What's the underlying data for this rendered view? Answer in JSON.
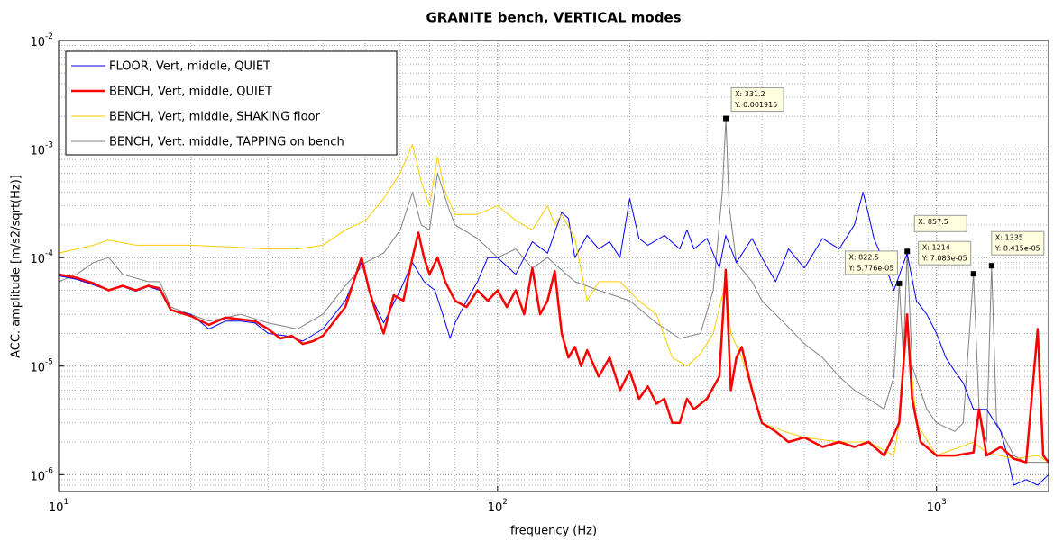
{
  "chart_data": {
    "type": "line",
    "title": "GRANITE bench, VERTICAL modes",
    "x_label": "frequency (Hz)",
    "y_label": "ACC. amplitude [m/s2/sqrt(Hz)]",
    "log_x": true,
    "log_y": true,
    "grid": true,
    "legend": "upper left",
    "xlim": [
      10,
      1800
    ],
    "ylim": [
      7e-07,
      0.01
    ],
    "xticks": [
      {
        "value": 10,
        "label": "10^1"
      },
      {
        "value": 100,
        "label": "10^2"
      },
      {
        "value": 1000,
        "label": "10^3"
      }
    ],
    "yticks": [
      {
        "value": 1e-06,
        "label": "10^-6"
      },
      {
        "value": 1e-05,
        "label": "10^-5"
      },
      {
        "value": 0.0001,
        "label": "10^-4"
      },
      {
        "value": 0.001,
        "label": "10^-3"
      },
      {
        "value": 0.01,
        "label": "10^-2"
      }
    ],
    "series": [
      {
        "name": "FLOOR, Vert, middle, QUIET",
        "color": "#0000ff",
        "width": 1,
        "x": [
          10,
          11,
          12,
          13,
          14,
          15,
          16,
          17,
          18,
          20,
          22,
          24,
          26,
          28,
          30,
          33,
          36,
          40,
          45,
          49,
          52,
          55,
          60,
          64,
          68,
          72,
          75,
          78,
          80,
          85,
          90,
          95,
          100,
          110,
          120,
          130,
          140,
          145,
          150,
          160,
          170,
          180,
          190,
          200,
          210,
          220,
          240,
          260,
          270,
          280,
          300,
          320,
          331,
          350,
          380,
          400,
          430,
          460,
          500,
          550,
          600,
          650,
          680,
          700,
          720,
          760,
          800,
          857,
          900,
          950,
          1000,
          1050,
          1100,
          1150,
          1214,
          1300,
          1400,
          1450,
          1500,
          1600,
          1700,
          1800
        ],
        "values": [
          6.8e-05,
          6.3e-05,
          5.6e-05,
          5e-05,
          5.4e-05,
          4.9e-05,
          5.4e-05,
          5e-05,
          3.3e-05,
          3e-05,
          2.2e-05,
          2.6e-05,
          2.6e-05,
          2.5e-05,
          2e-05,
          1.9e-05,
          1.7e-05,
          2.2e-05,
          4e-05,
          9e-05,
          4e-05,
          2.5e-05,
          5e-05,
          9e-05,
          6e-05,
          5e-05,
          3e-05,
          1.8e-05,
          2.5e-05,
          4e-05,
          6e-05,
          0.0001,
          0.0001,
          7e-05,
          0.00014,
          0.00011,
          0.00026,
          0.00023,
          0.0001,
          0.00016,
          0.00012,
          0.00014,
          0.0001,
          0.00035,
          0.00015,
          0.00013,
          0.00016,
          0.00012,
          0.00018,
          0.00012,
          0.00015,
          8e-05,
          0.00016,
          9e-05,
          0.00015,
          0.0001,
          6e-05,
          0.00012,
          8e-05,
          0.00015,
          0.00012,
          0.0002,
          0.0004,
          0.00025,
          0.00015,
          9e-05,
          5e-05,
          0.00011,
          4e-05,
          3e-05,
          2e-05,
          1.2e-05,
          9e-06,
          7e-06,
          4e-06,
          4e-06,
          2.5e-06,
          1.5e-06,
          8e-07,
          9e-07,
          8e-07,
          1e-06
        ]
      },
      {
        "name": "BENCH, Vert, middle, QUIET",
        "color": "#ff0000",
        "width": 2.5,
        "x": [
          10,
          11,
          12,
          13,
          14,
          15,
          16,
          17,
          18,
          20,
          22,
          24,
          26,
          28,
          30,
          32,
          34,
          36,
          38,
          40,
          45,
          49,
          51,
          53,
          55,
          58,
          61,
          64,
          66,
          68,
          70,
          73,
          76,
          80,
          85,
          90,
          95,
          100,
          105,
          110,
          115,
          120,
          125,
          130,
          135,
          140,
          145,
          150,
          155,
          160,
          170,
          180,
          190,
          200,
          210,
          220,
          230,
          240,
          250,
          260,
          270,
          280,
          300,
          320,
          331,
          340,
          350,
          360,
          380,
          400,
          430,
          460,
          500,
          550,
          600,
          650,
          700,
          760,
          822,
          857,
          880,
          920,
          1000,
          1100,
          1214,
          1250,
          1300,
          1400,
          1500,
          1600,
          1700,
          1750,
          1800
        ],
        "values": [
          7e-05,
          6.5e-05,
          5.8e-05,
          5e-05,
          5.5e-05,
          5e-05,
          5.5e-05,
          5.2e-05,
          3.3e-05,
          2.9e-05,
          2.4e-05,
          2.8e-05,
          2.7e-05,
          2.6e-05,
          2.2e-05,
          1.8e-05,
          1.9e-05,
          1.6e-05,
          1.7e-05,
          1.9e-05,
          3.5e-05,
          0.0001,
          5e-05,
          3e-05,
          2e-05,
          4.5e-05,
          4e-05,
          0.0001,
          0.00017,
          0.0001,
          7e-05,
          0.0001,
          6e-05,
          4e-05,
          3.5e-05,
          5e-05,
          4e-05,
          5e-05,
          3.5e-05,
          5e-05,
          3e-05,
          8e-05,
          3e-05,
          4e-05,
          7.5e-05,
          2e-05,
          1.2e-05,
          1.5e-05,
          1e-05,
          1.4e-05,
          8e-06,
          1.2e-05,
          6e-06,
          9e-06,
          5e-06,
          6.5e-06,
          4.5e-06,
          5e-06,
          3e-06,
          3e-06,
          5e-06,
          4e-06,
          5e-06,
          8e-06,
          7.7e-05,
          6e-06,
          1.2e-05,
          1.5e-05,
          6e-06,
          3e-06,
          2.5e-06,
          2e-06,
          2.2e-06,
          1.8e-06,
          2e-06,
          1.8e-06,
          2e-06,
          1.5e-06,
          3e-06,
          3e-05,
          5e-06,
          2e-06,
          1.5e-06,
          1.5e-06,
          1.6e-06,
          4e-06,
          1.5e-06,
          1.8e-06,
          1.4e-06,
          1.3e-06,
          2.2e-05,
          1.5e-06,
          1.3e-06
        ]
      },
      {
        "name": "BENCH, Vert, middle, SHAKING floor",
        "color": "#ffcc00",
        "width": 1,
        "x": [
          10,
          12,
          13,
          15,
          20,
          25,
          30,
          35,
          40,
          45,
          50,
          55,
          60,
          64,
          67,
          70,
          73,
          76,
          80,
          90,
          100,
          110,
          120,
          130,
          135,
          140,
          150,
          160,
          170,
          190,
          210,
          230,
          250,
          270,
          290,
          310,
          331,
          340,
          360,
          380,
          400,
          450,
          500,
          600,
          700,
          800,
          822,
          857,
          900,
          1000,
          1214,
          1300,
          1500,
          1700,
          1800
        ],
        "values": [
          0.00011,
          0.00013,
          0.000145,
          0.00013,
          0.00013,
          0.000125,
          0.00012,
          0.00012,
          0.00013,
          0.00018,
          0.00022,
          0.00035,
          0.0006,
          0.0011,
          0.0005,
          0.0003,
          0.00085,
          0.0004,
          0.00025,
          0.00025,
          0.0003,
          0.00022,
          0.00018,
          0.0003,
          0.0002,
          0.00025,
          0.00015,
          4e-05,
          6e-05,
          6e-05,
          4e-05,
          3e-05,
          1.2e-05,
          1e-05,
          1.3e-05,
          2e-05,
          6e-05,
          2e-05,
          1.2e-05,
          6e-06,
          3e-06,
          2.5e-06,
          2.2e-06,
          2e-06,
          2e-06,
          1.5e-06,
          3e-06,
          2.5e-05,
          3e-06,
          1.5e-06,
          2e-06,
          1.6e-06,
          1.4e-06,
          1.5e-06,
          1.3e-06
        ]
      },
      {
        "name": "BENCH, Vert. middle, TAPPING on bench",
        "color": "#808080",
        "width": 1,
        "x": [
          10,
          11,
          12,
          13,
          14,
          16,
          17,
          18,
          22,
          26,
          30,
          35,
          40,
          45,
          50,
          55,
          60,
          64,
          67,
          70,
          73,
          77,
          80,
          90,
          100,
          110,
          120,
          130,
          150,
          170,
          200,
          230,
          260,
          290,
          310,
          325,
          331.2,
          337,
          350,
          380,
          400,
          450,
          500,
          550,
          600,
          650,
          700,
          760,
          800,
          822.5,
          840,
          857.5,
          880,
          950,
          1000,
          1100,
          1150,
          1214,
          1250,
          1300,
          1335,
          1370,
          1500,
          1600,
          1800
        ],
        "values": [
          6e-05,
          7e-05,
          9e-05,
          0.0001,
          7e-05,
          6e-05,
          6e-05,
          3.5e-05,
          2.6e-05,
          3e-05,
          2.5e-05,
          2.2e-05,
          3e-05,
          5.5e-05,
          9e-05,
          0.00011,
          0.00018,
          0.0004,
          0.0002,
          0.00018,
          0.0006,
          0.0003,
          0.0002,
          0.00015,
          0.0001,
          0.00012,
          8e-05,
          0.0001,
          6e-05,
          5e-05,
          4e-05,
          2.5e-05,
          1.8e-05,
          2e-05,
          5e-05,
          0.0004,
          0.001915,
          0.0003,
          9e-05,
          6e-05,
          4e-05,
          2.5e-05,
          1.6e-05,
          1.2e-05,
          8e-06,
          6e-06,
          5e-06,
          4e-06,
          8e-06,
          5.776e-05,
          1.2e-05,
          0.000114,
          1e-05,
          4e-06,
          3e-06,
          2.5e-06,
          3e-06,
          7.083e-05,
          4e-06,
          2e-06,
          8.415e-05,
          3e-06,
          1.5e-06,
          1.3e-06,
          1.3e-06
        ]
      }
    ],
    "annotations": [
      {
        "x": 331.2,
        "y": 0.001915,
        "x_label": "X: 331.2",
        "y_label": "Y: 0.001915"
      },
      {
        "x": 822.5,
        "y": 5.776e-05,
        "x_label": "X: 822.5",
        "y_label": "Y: 5.776e-05"
      },
      {
        "x": 857.5,
        "y": 0.000114,
        "x_label": "X: 857.5"
      },
      {
        "x": 1214,
        "y": 7.083e-05,
        "x_label": "X: 1214",
        "y_label": "Y: 7.083e-05"
      },
      {
        "x": 1335,
        "y": 8.415e-05,
        "x_label": "X: 1335",
        "y_label": "Y: 8.415e-05"
      }
    ]
  }
}
